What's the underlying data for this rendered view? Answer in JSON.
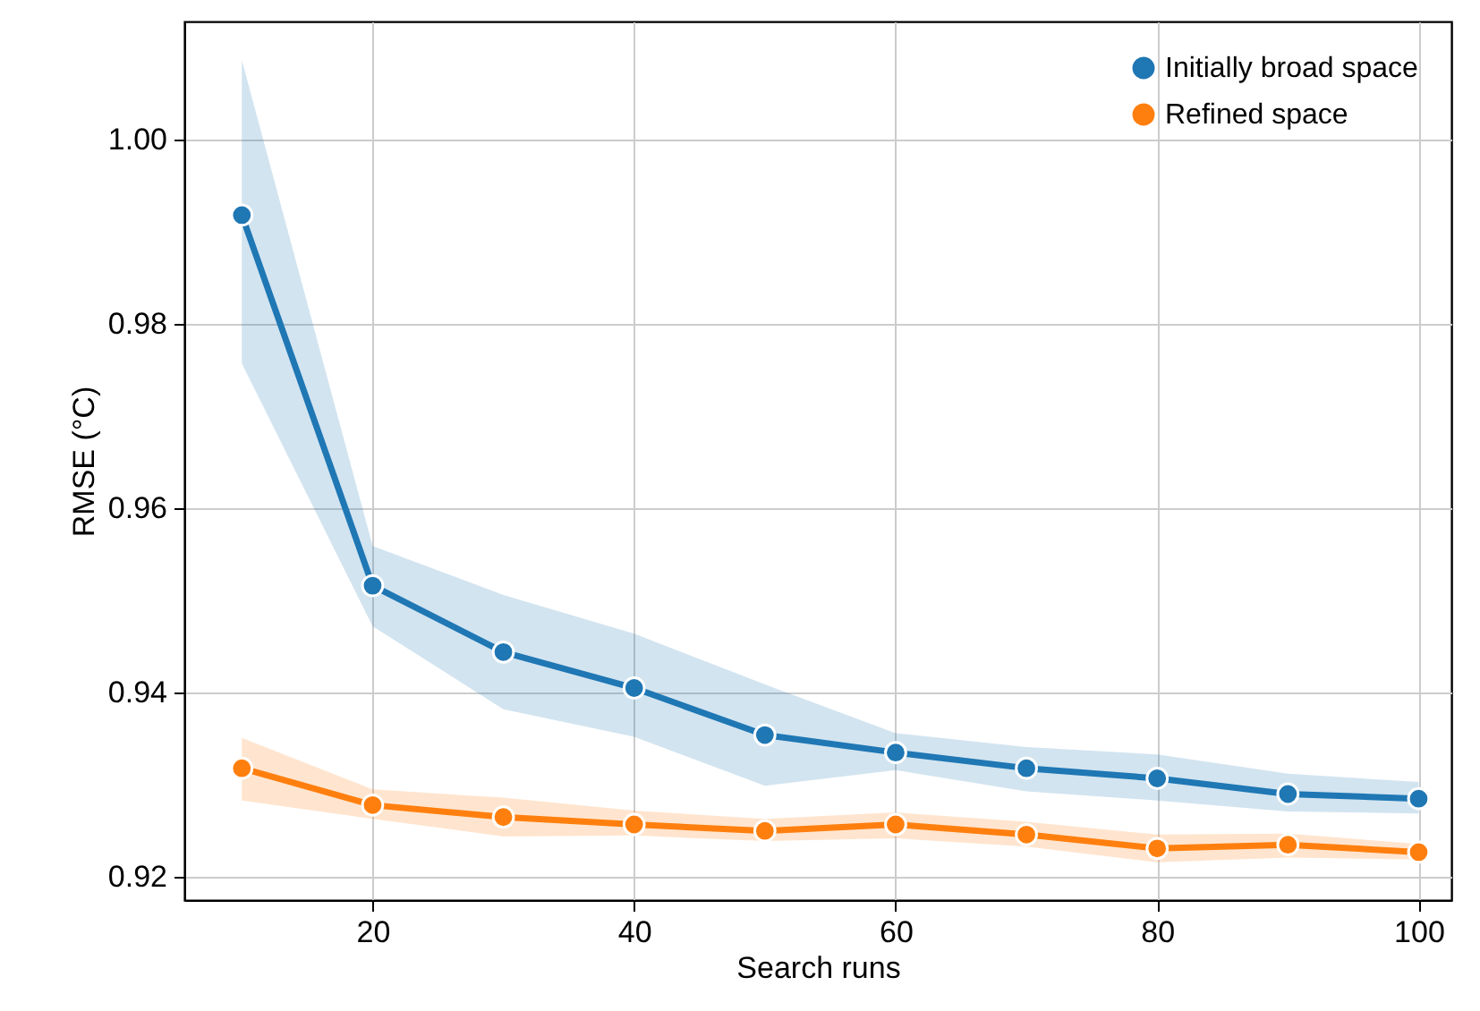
{
  "chart_data": {
    "type": "line",
    "xlabel": "Search runs",
    "ylabel": "RMSE (°C)",
    "x": [
      10,
      20,
      30,
      40,
      50,
      60,
      70,
      80,
      90,
      100
    ],
    "series": [
      {
        "name": "Initially broad space",
        "color": "#1f77b4",
        "values": [
          0.9918,
          0.9516,
          0.9444,
          0.9405,
          0.9354,
          0.9335,
          0.9318,
          0.9307,
          0.929,
          0.9285
        ],
        "lower": [
          0.9757,
          0.9472,
          0.9382,
          0.9352,
          0.9299,
          0.9316,
          0.9293,
          0.9283,
          0.9271,
          0.9269
        ],
        "upper": [
          1.0086,
          0.9559,
          0.9506,
          0.9464,
          0.9409,
          0.9356,
          0.9341,
          0.9333,
          0.9312,
          0.9303
        ]
      },
      {
        "name": "Refined space",
        "color": "#ff7f0e",
        "values": [
          0.9318,
          0.9278,
          0.9265,
          0.9257,
          0.925,
          0.9257,
          0.9246,
          0.9231,
          0.9235,
          0.9227
        ],
        "lower": [
          0.9283,
          0.9263,
          0.9244,
          0.9245,
          0.9239,
          0.9242,
          0.9233,
          0.9216,
          0.9221,
          0.9219
        ],
        "upper": [
          0.9351,
          0.9295,
          0.9286,
          0.9272,
          0.9263,
          0.927,
          0.926,
          0.9246,
          0.9247,
          0.9236
        ]
      }
    ],
    "xlim": [
      5.6,
      102.5
    ],
    "xticks": [
      20,
      40,
      60,
      80,
      100
    ],
    "ylim": [
      0.9175,
      1.0128
    ],
    "yticks": [
      0.92,
      0.94,
      0.96,
      0.98,
      {
        "value": 1.0,
        "label": "1.00"
      }
    ],
    "grid": true,
    "legend": "top right",
    "marker": "circle",
    "line_style": "solid"
  }
}
